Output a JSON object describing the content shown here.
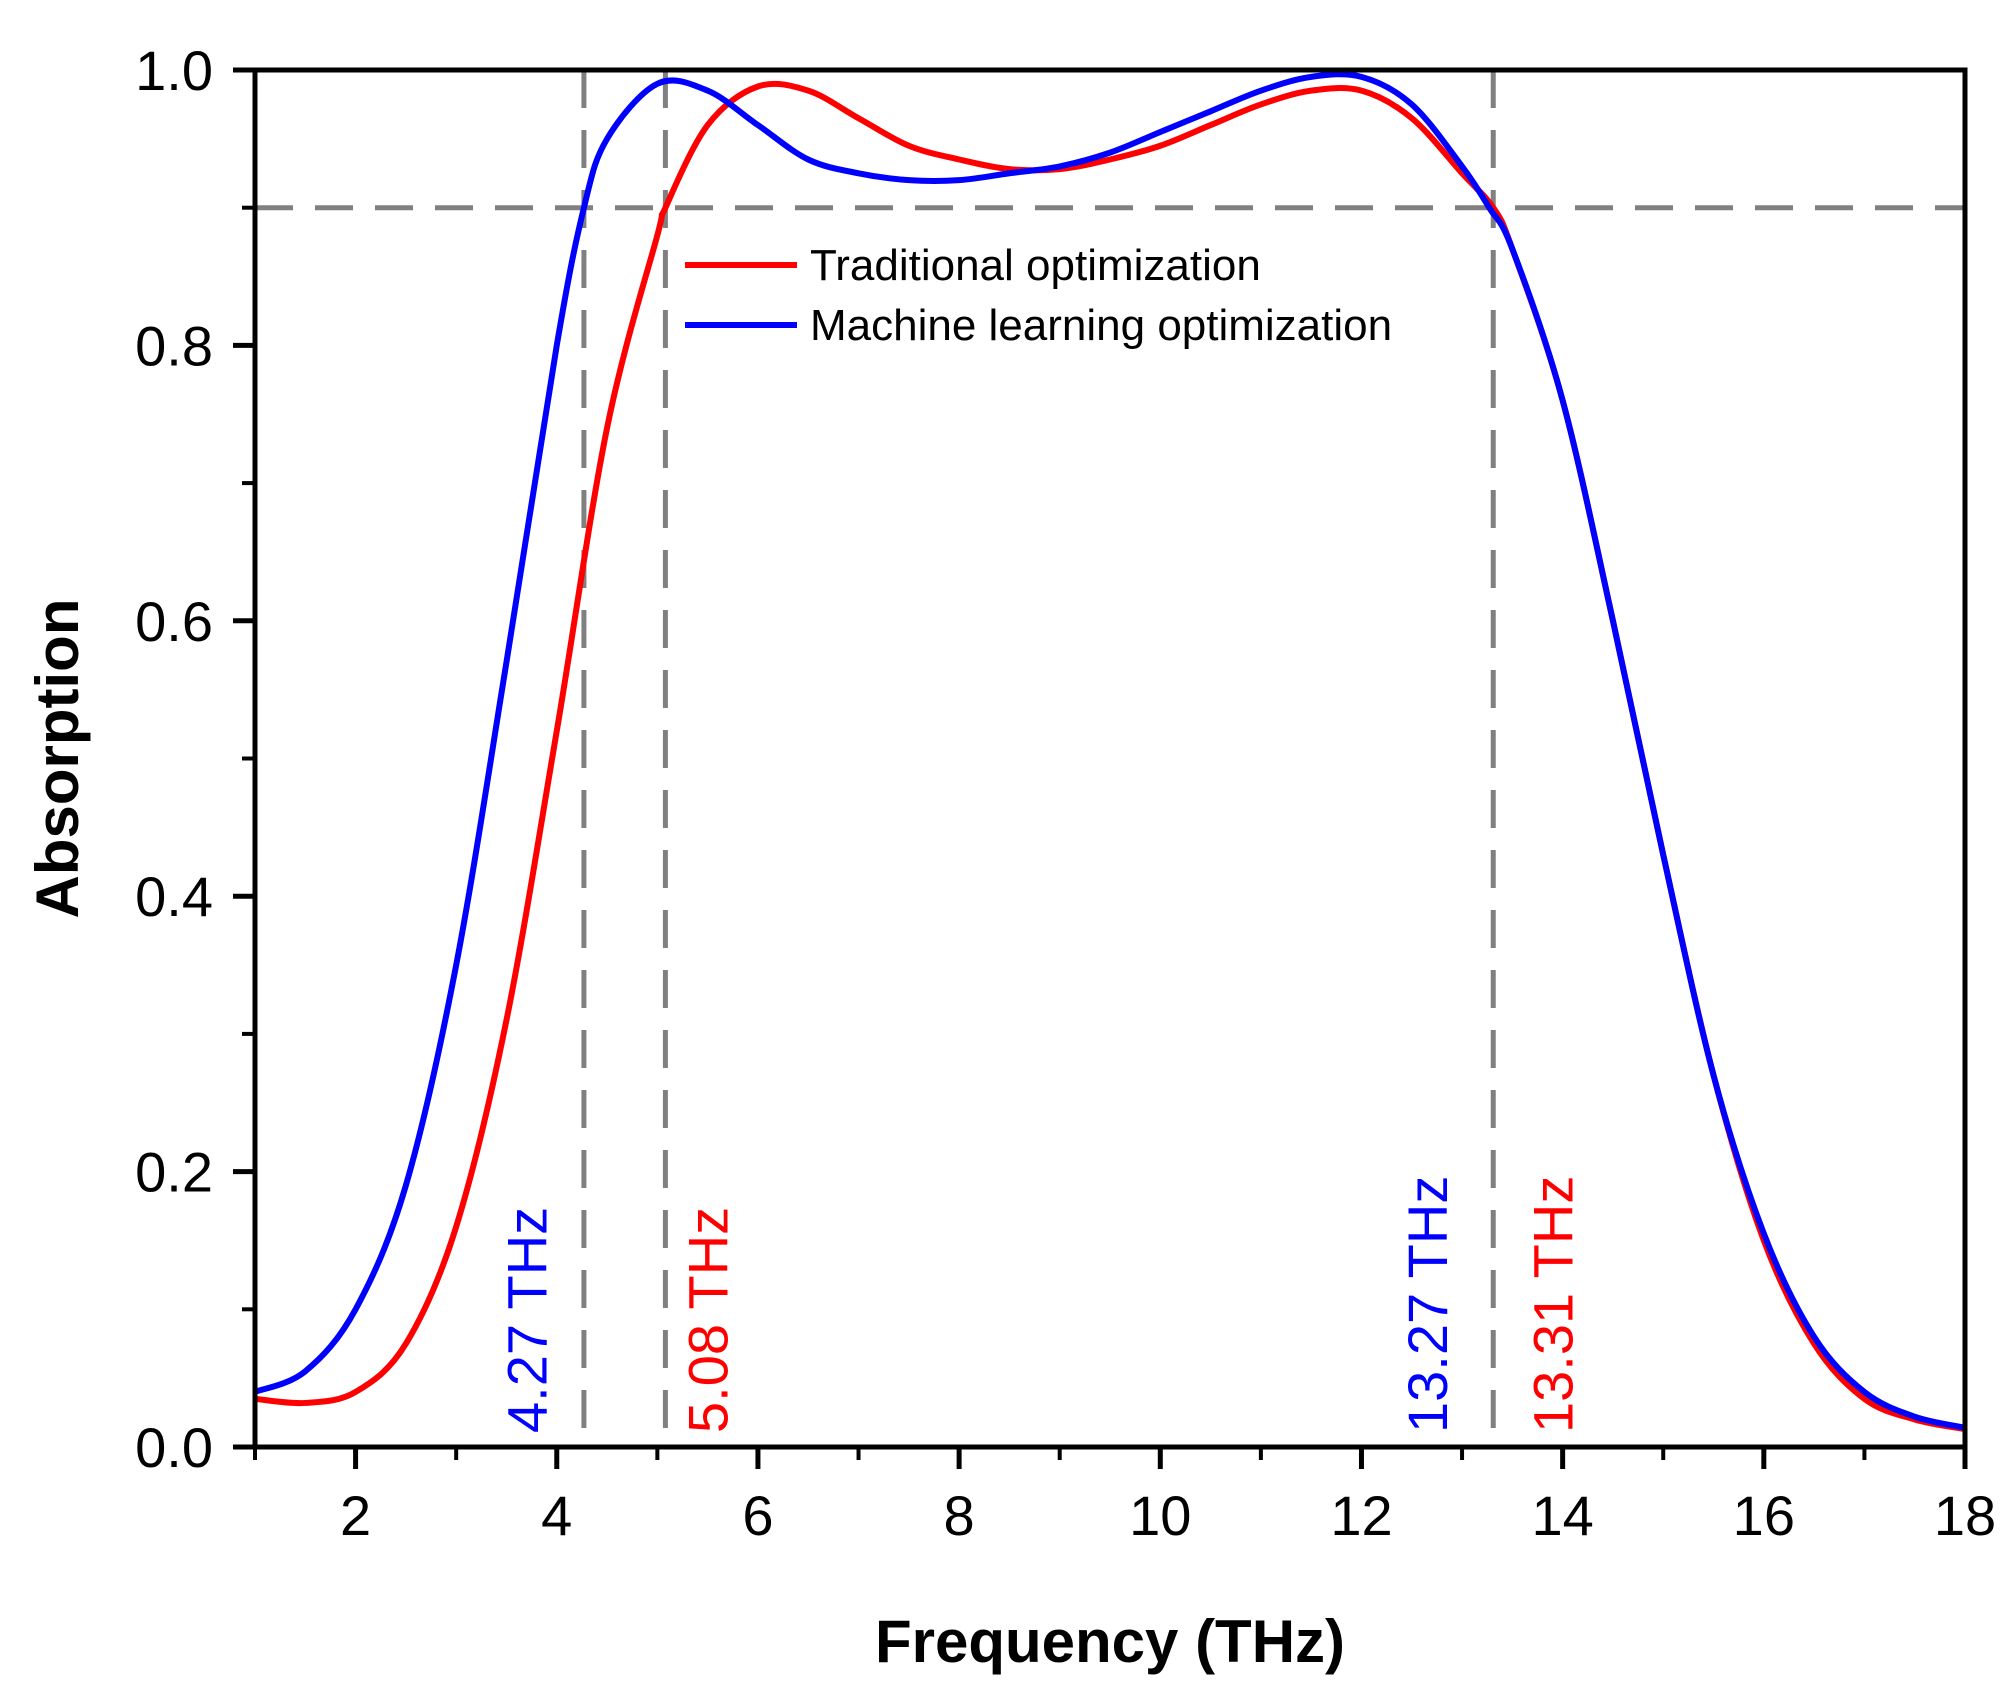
{
  "chart_data": {
    "type": "line",
    "title": "",
    "xlabel": "Frequency (THz)",
    "ylabel": "Absorption",
    "xlim": [
      1,
      18
    ],
    "ylim": [
      0.0,
      1.0
    ],
    "xticks": [
      2,
      4,
      6,
      8,
      10,
      12,
      14,
      16,
      18
    ],
    "xtick_labels": [
      "2",
      "4",
      "6",
      "8",
      "10",
      "12",
      "14",
      "16",
      "18"
    ],
    "yticks": [
      0.0,
      0.2,
      0.4,
      0.6,
      0.8,
      1.0
    ],
    "ytick_labels": [
      "0.0",
      "0.2",
      "0.4",
      "0.6",
      "0.8",
      "1.0"
    ],
    "grid": false,
    "legend_position": "top-center",
    "series": [
      {
        "name": "Traditional optimization",
        "color": "#ff0000",
        "x": [
          1.0,
          1.5,
          2.0,
          2.5,
          3.0,
          3.5,
          4.0,
          4.5,
          5.0,
          5.08,
          5.5,
          6.0,
          6.5,
          7.0,
          7.5,
          8.0,
          8.5,
          9.0,
          9.5,
          10.0,
          10.5,
          11.0,
          11.5,
          12.0,
          12.5,
          13.0,
          13.31,
          13.5,
          14.0,
          14.5,
          15.0,
          15.5,
          16.0,
          16.5,
          17.0,
          17.5,
          18.0
        ],
        "y": [
          0.035,
          0.032,
          0.04,
          0.075,
          0.16,
          0.31,
          0.52,
          0.74,
          0.88,
          0.9,
          0.96,
          0.988,
          0.985,
          0.965,
          0.945,
          0.935,
          0.928,
          0.928,
          0.935,
          0.945,
          0.96,
          0.975,
          0.985,
          0.985,
          0.965,
          0.925,
          0.9,
          0.87,
          0.76,
          0.6,
          0.43,
          0.27,
          0.15,
          0.075,
          0.035,
          0.02,
          0.013
        ]
      },
      {
        "name": "Machine learning optimization",
        "color": "#0000ff",
        "x": [
          1.0,
          1.5,
          2.0,
          2.5,
          3.0,
          3.5,
          4.0,
          4.27,
          4.5,
          5.0,
          5.5,
          6.0,
          6.5,
          7.0,
          7.5,
          8.0,
          8.5,
          9.0,
          9.5,
          10.0,
          10.5,
          11.0,
          11.5,
          12.0,
          12.5,
          13.0,
          13.27,
          13.5,
          14.0,
          14.5,
          15.0,
          15.5,
          16.0,
          16.5,
          17.0,
          17.5,
          18.0
        ],
        "y": [
          0.04,
          0.055,
          0.1,
          0.19,
          0.35,
          0.57,
          0.8,
          0.9,
          0.95,
          0.99,
          0.985,
          0.96,
          0.935,
          0.925,
          0.92,
          0.92,
          0.925,
          0.93,
          0.94,
          0.955,
          0.97,
          0.985,
          0.995,
          0.995,
          0.975,
          0.93,
          0.9,
          0.87,
          0.76,
          0.6,
          0.43,
          0.27,
          0.155,
          0.08,
          0.04,
          0.022,
          0.014
        ]
      }
    ],
    "reference_lines": {
      "horizontal": [
        {
          "y": 0.9,
          "style": "dashed",
          "color": "#808080"
        }
      ],
      "vertical": [
        {
          "x": 4.27,
          "style": "dashed",
          "color": "#808080"
        },
        {
          "x": 5.08,
          "style": "dashed",
          "color": "#808080"
        },
        {
          "x": 13.31,
          "style": "dashed",
          "color": "#808080"
        }
      ]
    },
    "annotations": [
      {
        "text": "4.27 THz",
        "x": 3.7,
        "color": "#0000ff"
      },
      {
        "text": "5.08 THz",
        "x": 5.5,
        "color": "#ff0000"
      },
      {
        "text": "13.27 THz",
        "x": 12.65,
        "color": "#0000ff"
      },
      {
        "text": "13.31 THz",
        "x": 13.9,
        "color": "#ff0000"
      }
    ]
  }
}
